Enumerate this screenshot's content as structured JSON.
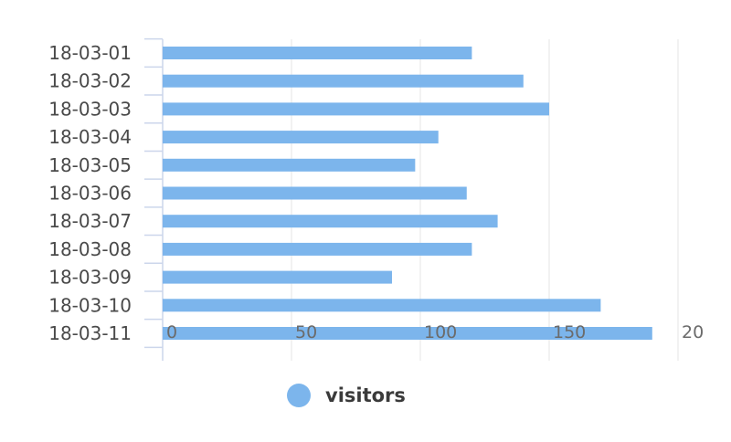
{
  "chart_data": {
    "type": "bar",
    "orientation": "horizontal",
    "categories": [
      "18-03-01",
      "18-03-02",
      "18-03-03",
      "18-03-04",
      "18-03-05",
      "18-03-06",
      "18-03-07",
      "18-03-08",
      "18-03-09",
      "18-03-10",
      "18-03-11"
    ],
    "series": [
      {
        "name": "visitors",
        "values": [
          120,
          140,
          150,
          107,
          98,
          118,
          130,
          120,
          89,
          170,
          190
        ]
      }
    ],
    "xlim": [
      0,
      200
    ],
    "xticks": [
      "0",
      "50",
      "100",
      "150",
      "20"
    ],
    "grid": true,
    "legend_position": "bottom-center",
    "colors": {
      "bar": "#7cb5ec",
      "grid": "#e6e6e6",
      "axis": "#ccd6eb"
    }
  }
}
